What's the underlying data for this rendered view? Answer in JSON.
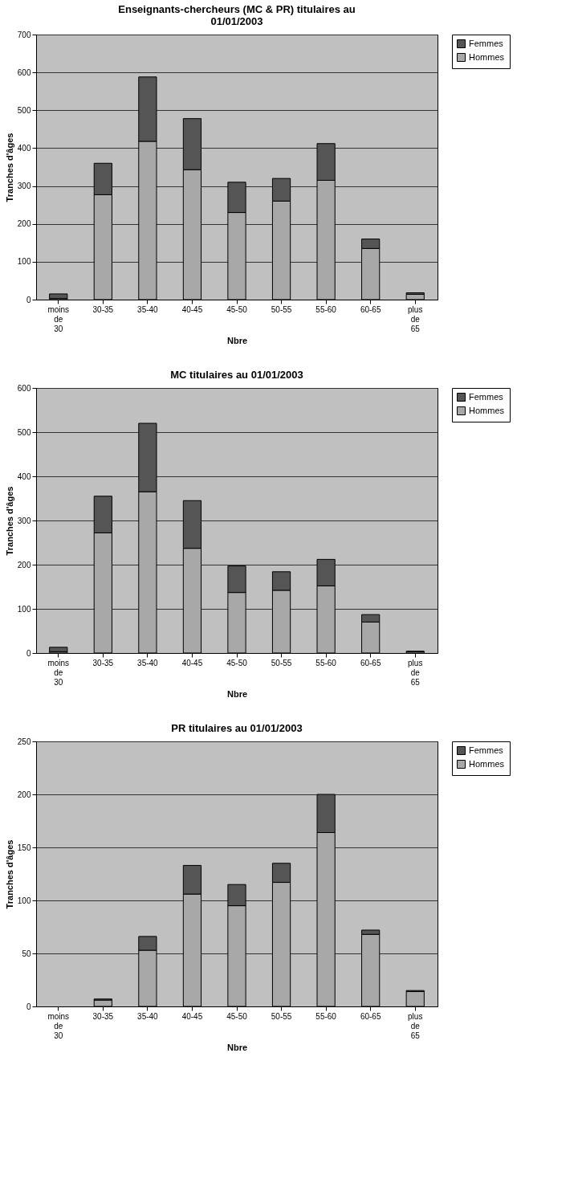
{
  "chart_data": [
    {
      "type": "bar",
      "title": [
        "Enseignants-chercheurs (MC & PR) titulaires au",
        "01/01/2003"
      ],
      "xlabel": "Nbre",
      "ylabel": "Tranches d'âges",
      "stacked": true,
      "legend": "right",
      "grid": "y",
      "categories": [
        "moins de 30",
        "30-35",
        "35-40",
        "40-45",
        "45-50",
        "50-55",
        "55-60",
        "60-65",
        "plus de 65"
      ],
      "ylim": [
        0,
        700
      ],
      "yticks": [
        0,
        100,
        200,
        300,
        400,
        500,
        600,
        700
      ],
      "series": [
        {
          "name": "Hommes",
          "color": "#a8a8a8",
          "values": [
            3,
            277,
            418,
            343,
            230,
            260,
            315,
            135,
            14
          ]
        },
        {
          "name": "Femmes",
          "color": "#555555",
          "values": [
            12,
            83,
            170,
            135,
            80,
            60,
            97,
            25,
            4
          ]
        }
      ]
    },
    {
      "type": "bar",
      "title": "MC titulaires au 01/01/2003",
      "xlabel": "Nbre",
      "ylabel": "Tranches d'âges",
      "stacked": true,
      "legend": "right",
      "grid": "y",
      "categories": [
        "moins de 30",
        "30-35",
        "35-40",
        "40-45",
        "45-50",
        "50-55",
        "55-60",
        "60-65",
        "plus de 65"
      ],
      "ylim": [
        0,
        600
      ],
      "yticks": [
        0,
        100,
        200,
        300,
        400,
        500,
        600
      ],
      "series": [
        {
          "name": "Hommes",
          "color": "#a8a8a8",
          "values": [
            3,
            272,
            365,
            237,
            137,
            142,
            152,
            70,
            3
          ]
        },
        {
          "name": "Femmes",
          "color": "#555555",
          "values": [
            10,
            83,
            155,
            108,
            60,
            42,
            60,
            17,
            1
          ]
        }
      ]
    },
    {
      "type": "bar",
      "title": "PR titulaires au 01/01/2003",
      "xlabel": "Nbre",
      "ylabel": "Tranches d'âges",
      "stacked": true,
      "legend": "right",
      "grid": "y",
      "categories": [
        "moins de 30",
        "30-35",
        "35-40",
        "40-45",
        "45-50",
        "50-55",
        "55-60",
        "60-65",
        "plus de 65"
      ],
      "ylim": [
        0,
        250
      ],
      "yticks": [
        0,
        50,
        100,
        150,
        200,
        250
      ],
      "series": [
        {
          "name": "Hommes",
          "color": "#a8a8a8",
          "values": [
            0,
            6,
            53,
            106,
            95,
            117,
            164,
            68,
            14
          ]
        },
        {
          "name": "Femmes",
          "color": "#555555",
          "values": [
            0,
            1,
            13,
            27,
            20,
            18,
            36,
            4,
            1
          ]
        }
      ]
    }
  ]
}
